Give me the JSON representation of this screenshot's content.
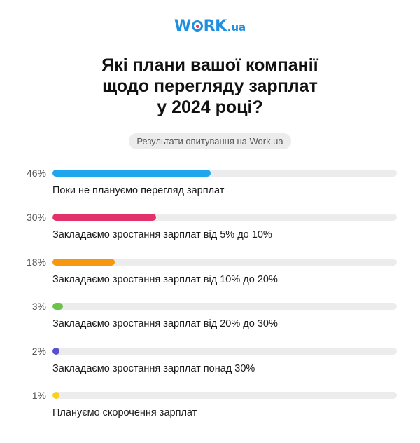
{
  "logo": {
    "text_before": "W",
    "text_after": "RK",
    "suffix": ".ua",
    "color": "#1e8fe1",
    "accent": "#e8365d"
  },
  "title_lines": [
    "Які плани вашої компанії",
    "щодо перегляду зарплат",
    "у 2024 році?"
  ],
  "badge": "Результати опитування на Work.ua",
  "chart_data": {
    "type": "bar",
    "orientation": "horizontal",
    "title": "Які плани вашої компанії щодо перегляду зарплат у 2024 році?",
    "subtitle": "Результати опитування на Work.ua",
    "xlim": [
      0,
      100
    ],
    "unit": "%",
    "categories": [
      "Поки не плануємо перегляд зарплат",
      "Закладаємо зростання зарплат від 5% до 10%",
      "Закладаємо зростання зарплат від 10% до 20%",
      "Закладаємо зростання зарплат від 20% до 30%",
      "Закладаємо зростання зарплат понад 30%",
      "Плануємо скорочення зарплат"
    ],
    "values": [
      46,
      30,
      18,
      3,
      2,
      1
    ],
    "value_labels": [
      "46%",
      "30%",
      "18%",
      "3%",
      "2%",
      "1%"
    ],
    "colors": [
      "#1ea7ec",
      "#e3316b",
      "#f7960f",
      "#6cc24a",
      "#5a4fcf",
      "#f7d21c"
    ],
    "track_color": "#ececec"
  }
}
